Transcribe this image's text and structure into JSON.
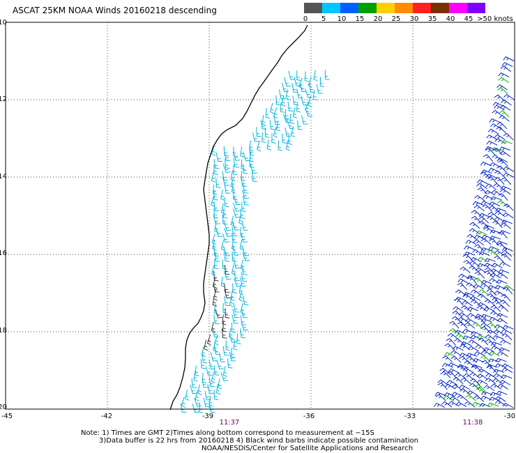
{
  "title": "ASCAT 25KM NOAA Winds 20160218 descending",
  "legend": {
    "colors": [
      "#555555",
      "#00c8ff",
      "#0060ff",
      "#00a000",
      "#ffd000",
      "#ff8c00",
      "#ff2020",
      "#7a3000",
      "#ff00ff",
      "#8000ff"
    ],
    "labels": [
      "0",
      "5",
      "10",
      "15",
      "20",
      "25",
      "30",
      "35",
      "40",
      "45",
      ">50 knots"
    ]
  },
  "axes": {
    "x_ticks": [
      "-45",
      "-42",
      "-39",
      "-36",
      "-33",
      "-30"
    ],
    "y_ticks": [
      "-10",
      "-12",
      "-14",
      "-16",
      "-18",
      "-20"
    ],
    "lon_range": [
      -45,
      -30
    ],
    "lat_range": [
      -20,
      -10
    ],
    "grid": "dotted"
  },
  "times": [
    "11:37",
    "11:38"
  ],
  "notes": {
    "line1": "Note: 1) Times are GMT 2)Times along bottom correspond to measurement at −15S",
    "line2": "3)Data buffer is 22 hrs from 20160218 4) Black wind barbs indicate possible contamination",
    "line3": "NOAA/NESDIS/Center for Satellite Applications and Research"
  }
}
